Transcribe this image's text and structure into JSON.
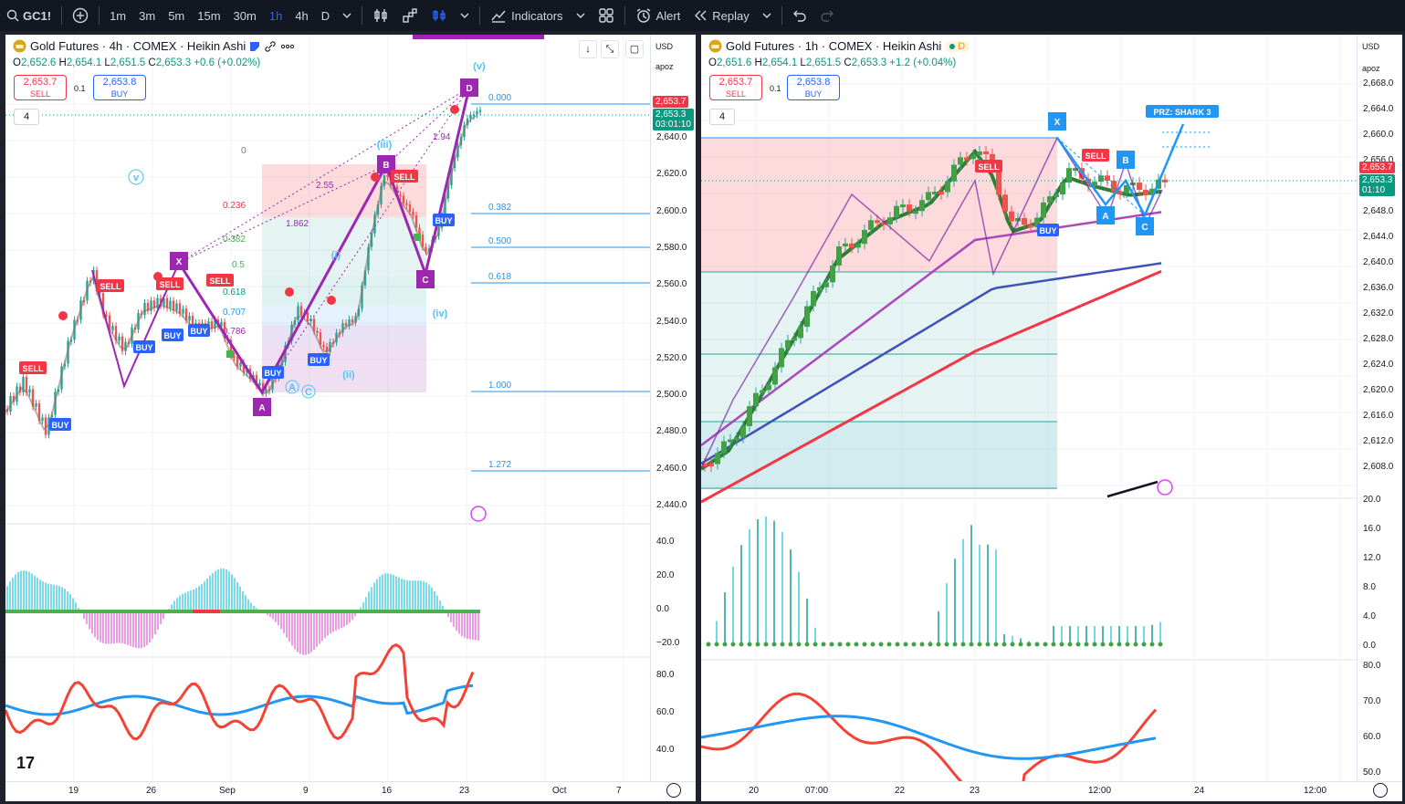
{
  "toolbar": {
    "symbol": "GC1!",
    "intervals": [
      "1m",
      "3m",
      "5m",
      "15m",
      "30m",
      "1h",
      "4h",
      "D"
    ],
    "active_interval": "1h",
    "indicators_label": "Indicators",
    "alert_label": "Alert",
    "replay_label": "Replay"
  },
  "left": {
    "title": "Gold Futures · 4h · COMEX · Heikin Ashi",
    "ohlc": {
      "o": "2,652.6",
      "h": "2,654.1",
      "l": "2,651.5",
      "c": "2,653.3",
      "chg": "+0.6 (+0.02%)"
    },
    "sell_price": "2,653.7",
    "sell_label": "SELL",
    "buy_price": "2,653.8",
    "buy_label": "BUY",
    "spread": "0.1",
    "counter": "4",
    "currency": "USD",
    "scale_mode": "apoz",
    "price_ticks": [
      "2,640.0",
      "2,620.0",
      "2,600.0",
      "2,580.0",
      "2,560.0",
      "2,540.0",
      "2,520.0",
      "2,500.0",
      "2,480.0",
      "2,460.0",
      "2,440.0"
    ],
    "osc_ticks": [
      "40.0",
      "20.0",
      "0.0",
      "−20.0"
    ],
    "rsi_ticks": [
      "80.0",
      "60.0",
      "40.0"
    ],
    "price_tag_red": "2,653.7",
    "price_tag_green": "2,653.3",
    "countdown": "03:01:10",
    "x_labels": [
      "19",
      "26",
      "Sep",
      "9",
      "16",
      "23",
      "Oct",
      "7"
    ],
    "fib_right": [
      "0.000",
      "0.382",
      "0.500",
      "0.618",
      "1.000",
      "1.272"
    ],
    "fib_left": [
      "0",
      "0.236",
      "0.382",
      "0.5",
      "0.618",
      "0.707",
      "0.786"
    ],
    "pattern_points": [
      "X",
      "A",
      "B",
      "C",
      "D"
    ],
    "ratios": [
      "2.55",
      "1.862",
      "1.94"
    ],
    "waves": [
      "(v)",
      "(iii)",
      "(iv)",
      "(ii)",
      "v",
      "(i)",
      "A",
      "C"
    ],
    "signals": {
      "sell": "SELL",
      "buy": "BUY"
    }
  },
  "right": {
    "title": "Gold Futures · 1h · COMEX · Heikin Ashi",
    "badge": "D",
    "ohlc": {
      "o": "2,651.6",
      "h": "2,654.1",
      "l": "2,651.5",
      "c": "2,653.3",
      "chg": "+1.2 (+0.04%)"
    },
    "sell_price": "2,653.7",
    "sell_label": "SELL",
    "buy_price": "2,653.8",
    "buy_label": "BUY",
    "spread": "0.1",
    "counter": "4",
    "currency": "USD",
    "scale_mode": "apoz",
    "price_ticks": [
      "2,668.0",
      "2,664.0",
      "2,660.0",
      "2,656.0",
      "2,648.0",
      "2,644.0",
      "2,640.0",
      "2,636.0",
      "2,632.0",
      "2,628.0",
      "2,624.0",
      "2,620.0",
      "2,616.0",
      "2,612.0",
      "2,608.0"
    ],
    "osc_ticks": [
      "20.0",
      "16.0",
      "12.0",
      "8.0",
      "4.0",
      "0.0"
    ],
    "rsi_ticks": [
      "80.0",
      "70.0",
      "60.0",
      "50.0"
    ],
    "price_tag_red": "2,653.7",
    "price_tag_green": "2,653.3",
    "countdown": "01:10",
    "x_labels": [
      "20",
      "07:00",
      "22",
      "23",
      "12:00",
      "24",
      "12:00"
    ],
    "prz_label": "PRZ: SHARK 3",
    "pattern_points": [
      "X",
      "A",
      "B",
      "C"
    ],
    "signals": {
      "sell": "SELL",
      "buy": "BUY"
    }
  },
  "colors": {
    "up": "#26a69a",
    "down": "#ef5350",
    "osc_up": "#4dd0e1",
    "osc_dn": "#e57ad9",
    "purple": "#9c27b0",
    "blue": "#2196f3",
    "accent": "#2962ff"
  }
}
